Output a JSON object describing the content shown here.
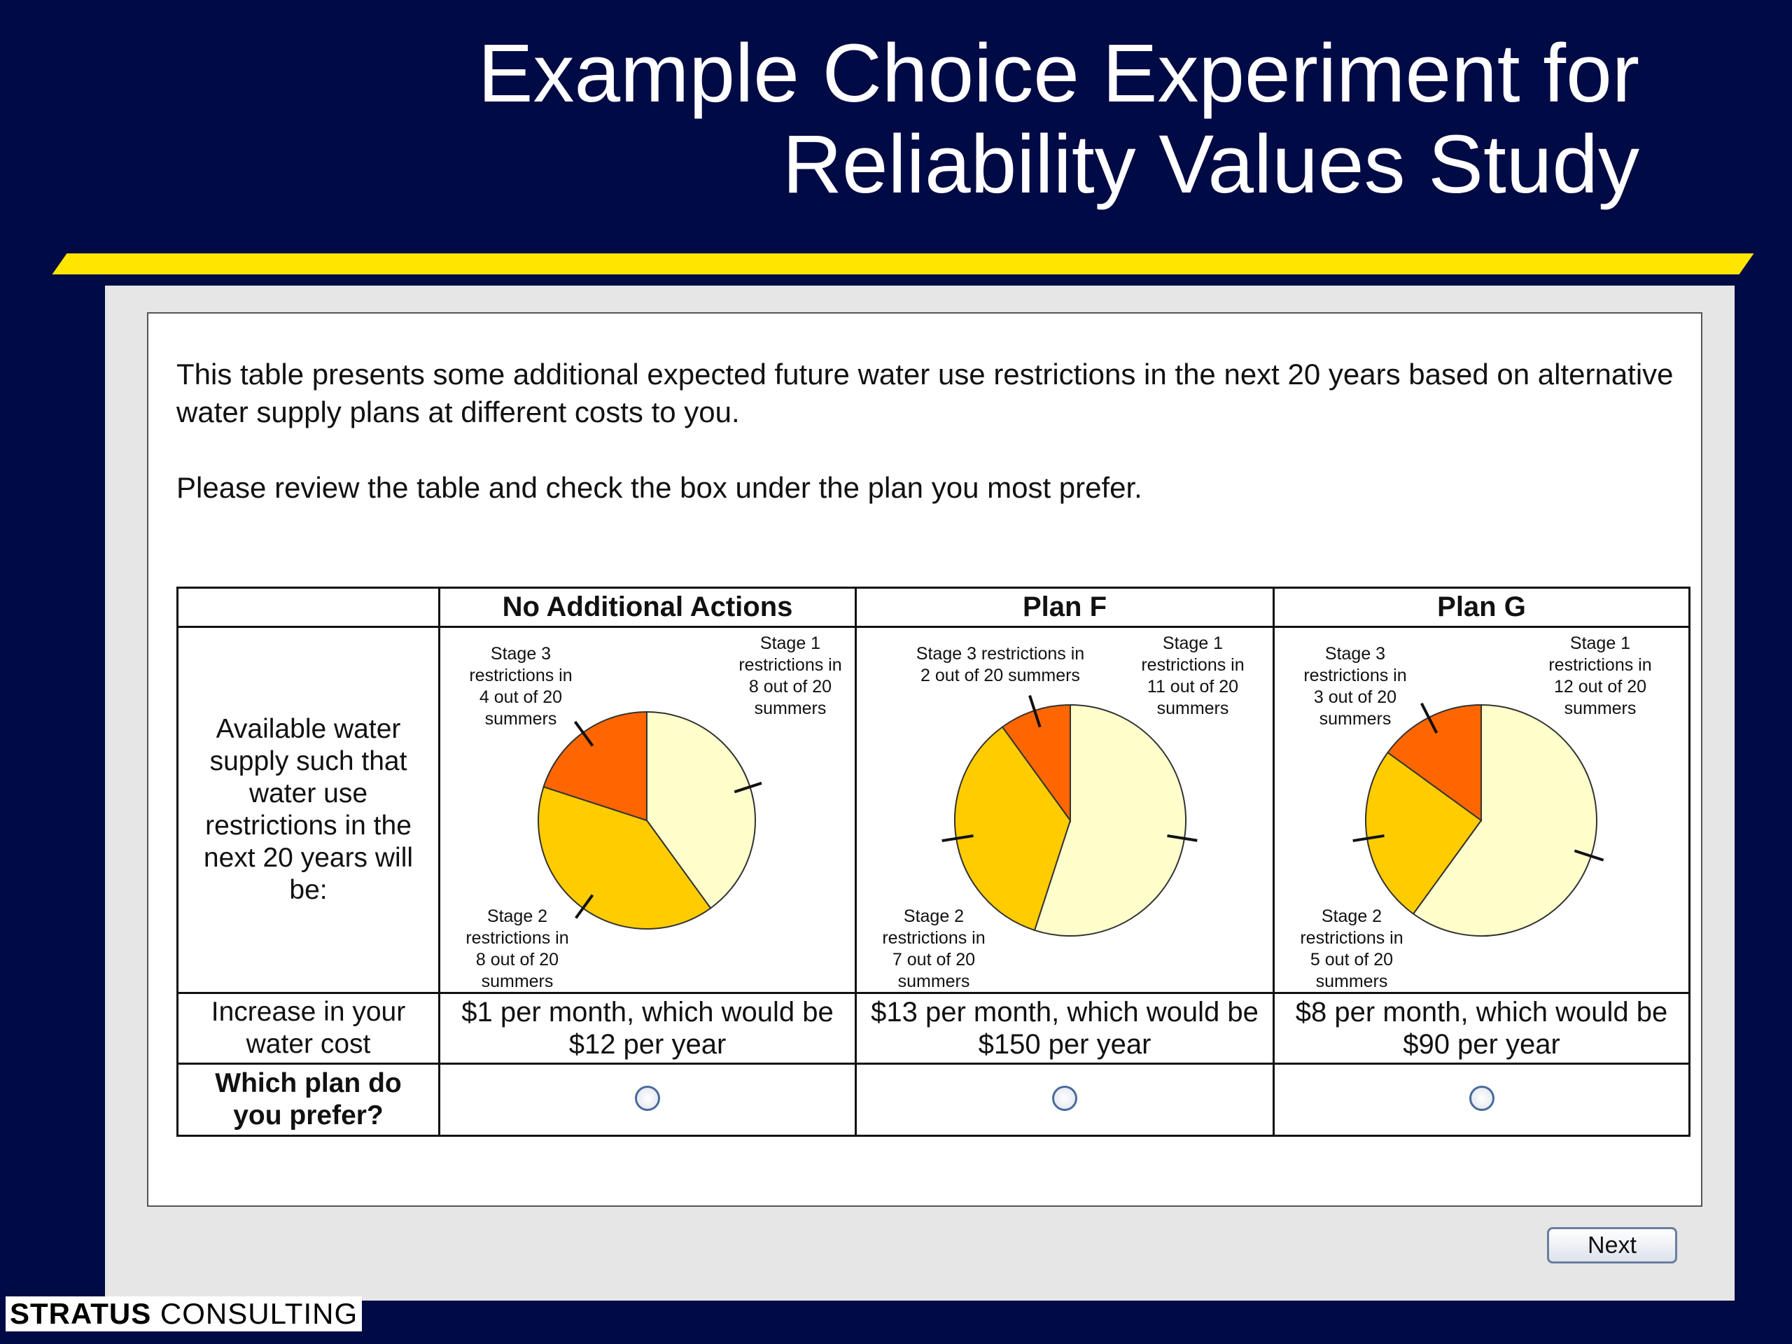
{
  "slide": {
    "title_line1": "Example Choice Experiment for",
    "title_line2": "Reliability Values Study"
  },
  "survey": {
    "intro_text": "This table presents some additional expected future water use restrictions in the next 20 years based on alternative water supply plans at different costs to you.",
    "instruction_text": "Please review the table and check the box under the plan you most prefer.",
    "table": {
      "headers": [
        "",
        "No Additional Actions",
        "Plan F",
        "Plan G"
      ],
      "row_labels": {
        "supply": "Available water supply such that water use restrictions in the next 20 years will be:",
        "cost": "Increase in your water cost",
        "prefer": "Which plan do you prefer?"
      },
      "plans": [
        {
          "name": "No Additional Actions",
          "stage1": 8,
          "stage2": 8,
          "stage3": 4,
          "label_stage1": [
            "Stage 1",
            "restrictions in",
            "8 out of 20",
            "summers"
          ],
          "label_stage2": [
            "Stage 2",
            "restrictions in",
            "8 out of 20",
            "summers"
          ],
          "label_stage3": [
            "Stage 3",
            "restrictions in",
            "4 out of 20",
            "summers"
          ],
          "cost_line1": "$1 per month, which would be",
          "cost_line2": "$12 per year",
          "selected": false
        },
        {
          "name": "Plan F",
          "stage1": 11,
          "stage2": 7,
          "stage3": 2,
          "label_stage1": [
            "Stage 1",
            "restrictions in",
            "11 out of 20",
            "summers"
          ],
          "label_stage2": [
            "Stage 2",
            "restrictions in",
            "7 out of 20",
            "summers"
          ],
          "label_stage3": [
            "Stage 3 restrictions in",
            "2 out of 20 summers"
          ],
          "cost_line1": "$13 per month, which would be",
          "cost_line2": "$150 per year",
          "selected": false
        },
        {
          "name": "Plan G",
          "stage1": 12,
          "stage2": 5,
          "stage3": 3,
          "label_stage1": [
            "Stage 1",
            "restrictions in",
            "12 out of 20",
            "summers"
          ],
          "label_stage2": [
            "Stage 2",
            "restrictions in",
            "5 out of 20",
            "summers"
          ],
          "label_stage3": [
            "Stage 3",
            "restrictions in",
            "3 out of 20",
            "summers"
          ],
          "cost_line1": "$8 per month, which would be",
          "cost_line2": "$90 per year",
          "selected": false
        }
      ]
    },
    "next_label": "Next"
  },
  "brand": {
    "name_bold": "STRATUS",
    "name_rest": " CONSULTING"
  },
  "colors": {
    "background": "#000a45",
    "accent_bar": "#ffe600",
    "stage1": "#ffffcc",
    "stage2": "#ffcc00",
    "stage3": "#ff6600"
  }
}
